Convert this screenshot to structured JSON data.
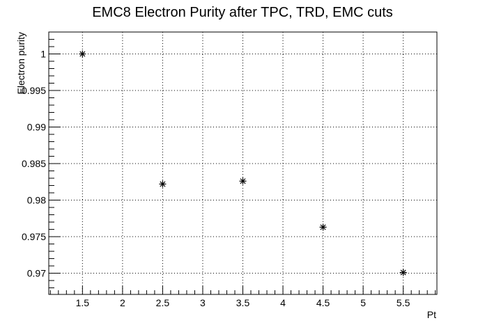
{
  "chart_data": {
    "type": "scatter",
    "title": "EMC8 Electron Purity after TPC, TRD, EMC cuts",
    "xlabel": "Pt",
    "ylabel": "Electron purity",
    "xlim": [
      1.08,
      5.92
    ],
    "ylim": [
      0.9671,
      1.003
    ],
    "x_ticks": [
      "1.5",
      "2",
      "2.5",
      "3",
      "3.5",
      "4",
      "4.5",
      "5",
      "5.5"
    ],
    "y_ticks": [
      "0.97",
      "0.975",
      "0.98",
      "0.985",
      "0.99",
      "0.995",
      "1"
    ],
    "grid": true,
    "marker": "asterisk",
    "series": [
      {
        "x": [
          1.5,
          2.5,
          3.5,
          4.5,
          5.5
        ],
        "values": [
          1.0,
          0.9822,
          0.9826,
          0.9763,
          0.9701
        ]
      }
    ]
  }
}
